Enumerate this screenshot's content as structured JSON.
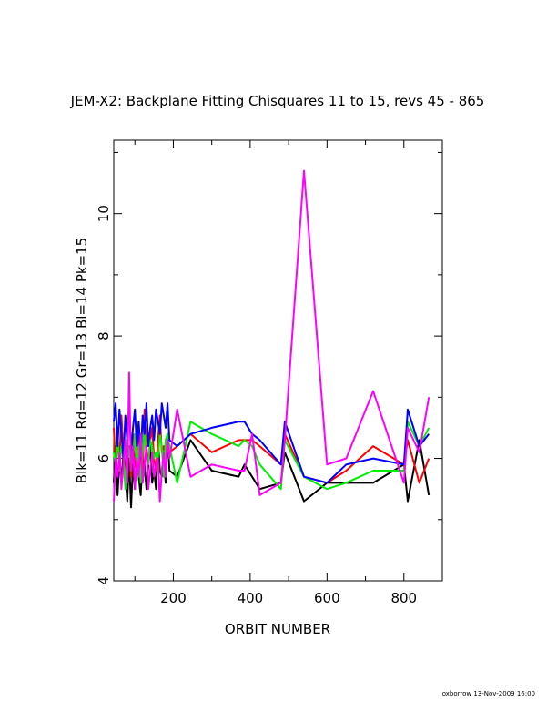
{
  "footer": "oxborrow 13-Nov-2009 16:00",
  "chart_data": {
    "type": "line",
    "title": "JEM-X2: Backplane Fitting Chisquares 11 to 15, revs 45 - 865",
    "xlabel": "ORBIT NUMBER",
    "ylabel": "Blk=11 Rd=12 Gr=13 Bl=14 Pk=15",
    "xlim": [
      45,
      900
    ],
    "ylim": [
      4,
      11.2
    ],
    "xticks": [
      200,
      400,
      600,
      800
    ],
    "yticks": [
      4,
      6,
      8,
      10
    ],
    "grid": false,
    "series": [
      {
        "color": "#000000",
        "x": [
          45,
          50,
          55,
          60,
          65,
          70,
          75,
          80,
          85,
          90,
          95,
          100,
          105,
          110,
          115,
          120,
          125,
          130,
          135,
          140,
          145,
          150,
          155,
          160,
          165,
          170,
          175,
          180,
          185,
          190,
          210,
          245,
          300,
          370,
          385,
          405,
          425,
          480,
          490,
          540,
          600,
          650,
          720,
          800,
          810,
          840,
          865
        ],
        "y": [
          5.6,
          6.2,
          5.4,
          6.0,
          5.6,
          6.1,
          5.8,
          5.3,
          6.0,
          5.2,
          5.9,
          5.5,
          6.1,
          5.7,
          5.4,
          6.0,
          5.9,
          5.5,
          5.9,
          6.2,
          5.6,
          5.8,
          5.5,
          6.3,
          5.8,
          5.7,
          6.0,
          5.6,
          6.4,
          5.8,
          5.7,
          6.3,
          5.8,
          5.7,
          5.9,
          5.7,
          5.5,
          5.6,
          6.1,
          5.3,
          5.6,
          5.6,
          5.6,
          5.9,
          5.3,
          6.3,
          5.4
        ]
      },
      {
        "color": "#ff0000",
        "x": [
          45,
          50,
          55,
          60,
          65,
          70,
          75,
          80,
          85,
          90,
          95,
          100,
          105,
          110,
          115,
          120,
          125,
          130,
          135,
          140,
          145,
          150,
          155,
          160,
          165,
          170,
          175,
          180,
          185,
          190,
          210,
          245,
          300,
          370,
          385,
          405,
          425,
          480,
          490,
          540,
          600,
          650,
          720,
          800,
          810,
          840,
          865
        ],
        "y": [
          6.5,
          5.8,
          6.3,
          6.0,
          6.7,
          6.1,
          5.6,
          6.0,
          6.2,
          5.7,
          6.4,
          5.9,
          5.8,
          6.6,
          6.0,
          5.7,
          6.8,
          6.2,
          5.9,
          6.3,
          6.5,
          6.0,
          5.8,
          6.3,
          6.7,
          6.1,
          6.2,
          6.0,
          6.3,
          6.1,
          6.2,
          6.4,
          6.1,
          6.3,
          6.3,
          6.3,
          6.2,
          5.9,
          6.4,
          5.7,
          5.6,
          5.8,
          6.2,
          5.9,
          6.3,
          5.6,
          6.0
        ]
      },
      {
        "color": "#00ee00",
        "x": [
          45,
          50,
          55,
          60,
          65,
          70,
          75,
          80,
          85,
          90,
          95,
          100,
          105,
          110,
          115,
          120,
          125,
          130,
          135,
          140,
          145,
          150,
          155,
          160,
          165,
          170,
          175,
          180,
          185,
          190,
          210,
          245,
          300,
          370,
          385,
          405,
          425,
          480,
          490,
          540,
          600,
          650,
          720,
          800,
          810,
          840,
          865
        ],
        "y": [
          6.1,
          5.9,
          6.4,
          5.8,
          6.2,
          6.0,
          5.5,
          6.3,
          6.1,
          5.9,
          6.0,
          6.4,
          5.8,
          6.2,
          5.6,
          6.1,
          6.5,
          6.0,
          5.9,
          6.3,
          6.2,
          6.0,
          6.1,
          6.0,
          6.4,
          6.2,
          5.7,
          6.3,
          6.4,
          6.2,
          5.6,
          6.6,
          6.4,
          6.2,
          6.3,
          6.2,
          5.9,
          5.5,
          6.3,
          5.7,
          5.5,
          5.6,
          5.8,
          5.8,
          6.6,
          6.2,
          6.5
        ]
      },
      {
        "color": "#0000ff",
        "x": [
          45,
          50,
          55,
          60,
          65,
          70,
          75,
          80,
          85,
          90,
          95,
          100,
          105,
          110,
          115,
          120,
          125,
          130,
          135,
          140,
          145,
          150,
          155,
          160,
          165,
          170,
          175,
          180,
          185,
          190,
          210,
          245,
          300,
          370,
          385,
          405,
          425,
          480,
          490,
          540,
          600,
          650,
          720,
          800,
          810,
          840,
          865
        ],
        "y": [
          6.6,
          6.9,
          6.2,
          6.8,
          6.4,
          6.0,
          6.7,
          6.3,
          6.9,
          6.1,
          6.5,
          6.8,
          6.2,
          6.6,
          6.0,
          6.7,
          6.4,
          6.9,
          6.2,
          6.5,
          6.7,
          6.3,
          6.8,
          6.6,
          6.4,
          6.9,
          6.7,
          6.5,
          6.9,
          6.3,
          6.2,
          6.4,
          6.5,
          6.6,
          6.6,
          6.4,
          6.3,
          5.9,
          6.6,
          5.7,
          5.6,
          5.9,
          6.0,
          5.9,
          6.8,
          6.2,
          6.4
        ]
      },
      {
        "color": "#ff00ff",
        "x": [
          45,
          50,
          55,
          60,
          65,
          70,
          75,
          80,
          85,
          90,
          95,
          100,
          105,
          110,
          115,
          120,
          125,
          130,
          135,
          140,
          145,
          150,
          155,
          160,
          165,
          170,
          175,
          180,
          185,
          190,
          210,
          245,
          300,
          370,
          385,
          405,
          425,
          480,
          490,
          540,
          600,
          650,
          720,
          800,
          810,
          840,
          865
        ],
        "y": [
          5.3,
          6.0,
          5.7,
          6.1,
          5.5,
          5.9,
          6.3,
          5.6,
          7.4,
          5.8,
          6.2,
          5.5,
          6.0,
          5.7,
          6.4,
          5.6,
          5.9,
          6.2,
          5.5,
          5.8,
          6.1,
          5.7,
          5.9,
          6.0,
          5.3,
          5.8,
          6.1,
          5.7,
          6.3,
          6.0,
          6.8,
          5.7,
          5.9,
          5.8,
          5.8,
          6.4,
          5.4,
          5.6,
          6.3,
          10.7,
          5.9,
          6.0,
          7.1,
          5.6,
          6.5,
          6.1,
          7.0
        ]
      }
    ]
  }
}
